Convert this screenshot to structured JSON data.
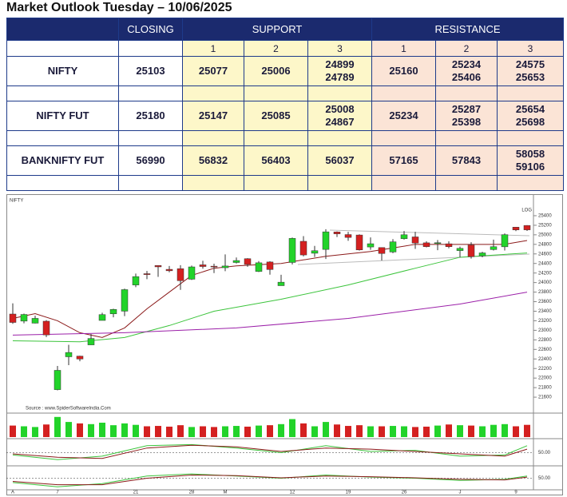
{
  "header": {
    "title": "Market Outlook Tuesday – 10/06/2025"
  },
  "table": {
    "closing": "CLOSING",
    "support": "SUPPORT",
    "resistance": "RESISTANCE",
    "levels": [
      "1",
      "2",
      "3"
    ],
    "rows": [
      {
        "name": "NIFTY",
        "closing": 25103,
        "support": [
          [
            25077
          ],
          [
            25006
          ],
          [
            24899,
            24789
          ]
        ],
        "resistance": [
          [
            25160
          ],
          [
            25234,
            25406
          ],
          [
            24575,
            25653
          ]
        ]
      },
      {
        "name": "NIFTY FUT",
        "closing": 25180,
        "support": [
          [
            25147
          ],
          [
            25085
          ],
          [
            25008,
            24867
          ]
        ],
        "resistance": [
          [
            25234
          ],
          [
            25287,
            25398
          ],
          [
            25654,
            25698
          ]
        ]
      },
      {
        "name": "BANKNIFTY FUT",
        "closing": 56990,
        "support": [
          [
            56832
          ],
          [
            56403
          ],
          [
            56037
          ]
        ],
        "resistance": [
          [
            57165
          ],
          [
            57843
          ],
          [
            58058,
            59106
          ]
        ]
      }
    ]
  },
  "chart_data": {
    "type": "candlestick",
    "title": "NIFTY",
    "source": "Source : www.SpiderSoftwareIndia.Com",
    "scale_label": "LOG",
    "categories": [
      "A",
      null,
      null,
      null,
      "7",
      null,
      null,
      null,
      null,
      null,
      null,
      "21",
      null,
      null,
      null,
      null,
      "28",
      null,
      null,
      "M",
      null,
      null,
      null,
      null,
      null,
      "12",
      null,
      null,
      null,
      null,
      "19",
      null,
      null,
      null,
      null,
      "26",
      null,
      null,
      null,
      null,
      "J",
      null,
      null,
      null,
      null,
      "9",
      null
    ],
    "open": [
      23341,
      23193,
      23150,
      23191,
      21758,
      22446,
      22460,
      22695,
      23207,
      23345,
      23401,
      23949,
      24186,
      24357,
      24277,
      24290,
      24070,
      24371,
      24343,
      24311,
      24420,
      24500,
      24233,
      24431,
      23935,
      24421,
      24864,
      24614,
      24694,
      25060,
      25005,
      24996,
      24745,
      24733,
      24640,
      24919,
      24956,
      24832,
      24825,
      24812,
      24669,
      24786,
      24560,
      24691,
      24749,
      25160,
      25196
    ],
    "high": [
      23565,
      23350,
      23306,
      23214,
      22254,
      22698,
      22468,
      22923,
      23368,
      23452,
      23872,
      24189,
      24243,
      24359,
      24348,
      24365,
      24355,
      24457,
      24396,
      24589,
      24526,
      24510,
      24449,
      24447,
      24164,
      24944,
      24973,
      24767,
      25116,
      25071,
      25062,
      25011,
      24946,
      24737,
      24909,
      25079,
      25062,
      24864,
      24892,
      24864,
      24754,
      24845,
      24644,
      24900,
      25030,
      25160,
      25200
    ],
    "low": [
      23136,
      23146,
      23145,
      22858,
      21743,
      22271,
      22353,
      22695,
      23207,
      23273,
      23298,
      23903,
      24072,
      24119,
      24216,
      23847,
      24055,
      24291,
      24198,
      24238,
      24400,
      24331,
      24220,
      24165,
      23935,
      24378,
      24547,
      24536,
      24494,
      24953,
      24874,
      24669,
      24686,
      24462,
      24614,
      24900,
      24704,
      24737,
      24677,
      24717,
      24526,
      24502,
      24530,
      24671,
      24671,
      25078,
      25081
    ],
    "close": [
      23165,
      23332,
      23250,
      22904,
      22162,
      22536,
      22399,
      22829,
      23329,
      23437,
      23852,
      24125,
      24167,
      24329,
      24247,
      24039,
      24328,
      24336,
      24334,
      24347,
      24461,
      24380,
      24414,
      24273,
      24008,
      24925,
      24578,
      24667,
      25062,
      25020,
      24945,
      24684,
      24813,
      24609,
      24853,
      25001,
      24827,
      24752,
      24834,
      24751,
      24716,
      24543,
      24621,
      24751,
      25003,
      25103,
      25104
    ],
    "up_color": "#22d32a",
    "down_color": "#d42020",
    "ylim": [
      21300,
      25600
    ],
    "yticks": [
      21600,
      21800,
      22000,
      22200,
      22400,
      22600,
      22800,
      23000,
      23200,
      23400,
      23600,
      23800,
      24000,
      24200,
      24400,
      24600,
      24800,
      25000,
      25200,
      25400
    ],
    "ma_lines": [
      {
        "color": "#8b1a1a",
        "x": [
          0,
          2,
          4,
          6,
          8,
          10,
          12,
          14,
          16,
          18,
          20,
          24,
          28,
          32,
          36,
          40,
          44,
          46
        ],
        "values": [
          23250,
          23350,
          23200,
          22950,
          22850,
          23050,
          23450,
          23800,
          24150,
          24300,
          24350,
          24400,
          24550,
          24650,
          24800,
          24800,
          24800,
          24880
        ]
      },
      {
        "color": "#3cc43c",
        "x": [
          0,
          6,
          10,
          14,
          18,
          24,
          30,
          36,
          40,
          46
        ],
        "values": [
          22780,
          22760,
          22850,
          23100,
          23400,
          23650,
          23950,
          24300,
          24530,
          24620
        ]
      },
      {
        "color": "#9b1fa8",
        "x": [
          0,
          10,
          20,
          30,
          40,
          46
        ],
        "values": [
          22900,
          22950,
          23050,
          23250,
          23550,
          23800
        ]
      }
    ],
    "volume": {
      "ylim": [
        0,
        600
      ],
      "values": [
        320,
        300,
        280,
        350,
        560,
        420,
        380,
        360,
        400,
        330,
        380,
        340,
        300,
        310,
        290,
        330,
        280,
        300,
        280,
        300,
        310,
        290,
        320,
        330,
        360,
        500,
        380,
        300,
        420,
        350,
        310,
        330,
        300,
        300,
        310,
        300,
        280,
        290,
        320,
        350,
        330,
        320,
        300,
        340,
        360,
        300,
        340
      ]
    },
    "oscillators": [
      {
        "ylim": [
          0,
          100
        ],
        "yticks": [
          {
            "value": 50,
            "label": "50.00"
          }
        ],
        "series": [
          {
            "color": "#3cc43c",
            "x": [
              0,
              4,
              8,
              12,
              16,
              20,
              24,
              28,
              32,
              36,
              40,
              44,
              46
            ],
            "values": [
              40,
              20,
              35,
              80,
              85,
              70,
              50,
              80,
              55,
              60,
              35,
              40,
              80
            ]
          },
          {
            "color": "#8b1a1a",
            "x": [
              0,
              4,
              8,
              12,
              16,
              20,
              24,
              28,
              32,
              36,
              40,
              44,
              46
            ],
            "values": [
              45,
              30,
              25,
              70,
              82,
              75,
              55,
              70,
              65,
              55,
              45,
              35,
              65
            ]
          }
        ]
      },
      {
        "ylim": [
          0,
          100
        ],
        "yticks": [
          {
            "value": 50,
            "label": "50.00"
          }
        ],
        "series": [
          {
            "color": "#3cc43c",
            "x": [
              0,
              4,
              8,
              12,
              16,
              20,
              24,
              28,
              32,
              36,
              40,
              44,
              46
            ],
            "values": [
              30,
              10,
              25,
              60,
              70,
              60,
              50,
              65,
              55,
              50,
              40,
              45,
              60
            ]
          },
          {
            "color": "#8b1a1a",
            "x": [
              0,
              4,
              8,
              12,
              16,
              20,
              24,
              28,
              32,
              36,
              40,
              44,
              46
            ],
            "values": [
              35,
              20,
              20,
              50,
              65,
              62,
              52,
              60,
              57,
              52,
              45,
              42,
              55
            ]
          }
        ]
      }
    ]
  }
}
